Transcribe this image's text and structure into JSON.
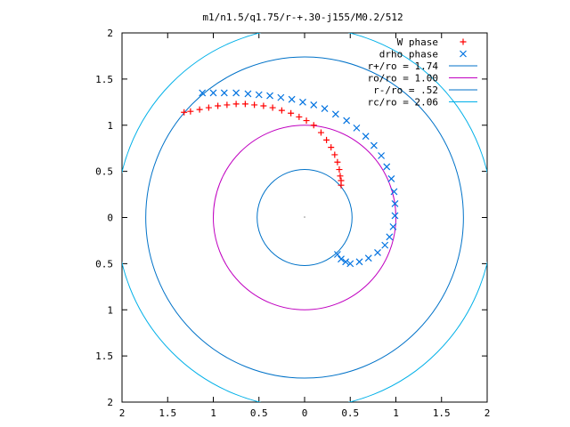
{
  "chart_data": {
    "type": "scatter",
    "title": "m1/n1.5/q1.75/r-+.30-j155/M0.2/512",
    "xlabel": "",
    "ylabel": "",
    "xlim": [
      -2,
      2
    ],
    "ylim": [
      -2,
      2
    ],
    "x_ticks": [
      -2,
      -1.5,
      -1,
      -0.5,
      0,
      0.5,
      1,
      1.5,
      2
    ],
    "y_ticks": [
      -2,
      -1.5,
      -1,
      -0.5,
      0,
      0.5,
      1,
      1.5,
      2
    ],
    "x_tick_labels": [
      "2",
      "1.5",
      "1",
      "0.5",
      "0",
      "0.5",
      "1",
      "1.5",
      "2"
    ],
    "y_tick_labels": [
      "2",
      "1.5",
      "1",
      "0.5",
      "0",
      "0.5",
      "1",
      "1.5",
      "2"
    ],
    "grid": false,
    "legend_position": "top-right",
    "series": [
      {
        "name": "W phase",
        "kind": "points",
        "marker": "plus",
        "color": "#ff0000",
        "points": [
          [
            0.4,
            0.35
          ],
          [
            0.4,
            0.4
          ],
          [
            0.39,
            0.45
          ],
          [
            0.38,
            0.52
          ],
          [
            0.36,
            0.6
          ],
          [
            0.33,
            0.68
          ],
          [
            0.29,
            0.76
          ],
          [
            0.24,
            0.84
          ],
          [
            0.18,
            0.92
          ],
          [
            0.1,
            1.0
          ],
          [
            0.02,
            1.05
          ],
          [
            -0.06,
            1.09
          ],
          [
            -0.15,
            1.13
          ],
          [
            -0.25,
            1.16
          ],
          [
            -0.35,
            1.19
          ],
          [
            -0.45,
            1.21
          ],
          [
            -0.55,
            1.22
          ],
          [
            -0.65,
            1.23
          ],
          [
            -0.75,
            1.23
          ],
          [
            -0.85,
            1.22
          ],
          [
            -0.95,
            1.21
          ],
          [
            -1.05,
            1.19
          ],
          [
            -1.15,
            1.17
          ],
          [
            -1.25,
            1.15
          ],
          [
            -1.32,
            1.14
          ]
        ]
      },
      {
        "name": "drho phase",
        "kind": "points",
        "marker": "cross",
        "color": "#0072e0",
        "points": [
          [
            -1.12,
            1.35
          ],
          [
            -1.0,
            1.35
          ],
          [
            -0.88,
            1.35
          ],
          [
            -0.75,
            1.35
          ],
          [
            -0.62,
            1.34
          ],
          [
            -0.5,
            1.33
          ],
          [
            -0.38,
            1.32
          ],
          [
            -0.26,
            1.3
          ],
          [
            -0.14,
            1.28
          ],
          [
            -0.02,
            1.25
          ],
          [
            0.1,
            1.22
          ],
          [
            0.22,
            1.18
          ],
          [
            0.34,
            1.12
          ],
          [
            0.46,
            1.05
          ],
          [
            0.57,
            0.97
          ],
          [
            0.67,
            0.88
          ],
          [
            0.76,
            0.78
          ],
          [
            0.84,
            0.67
          ],
          [
            0.9,
            0.55
          ],
          [
            0.95,
            0.42
          ],
          [
            0.98,
            0.28
          ],
          [
            0.99,
            0.15
          ],
          [
            0.99,
            0.02
          ],
          [
            0.97,
            -0.1
          ],
          [
            0.93,
            -0.21
          ],
          [
            0.88,
            -0.3
          ],
          [
            0.8,
            -0.38
          ],
          [
            0.7,
            -0.44
          ],
          [
            0.6,
            -0.48
          ],
          [
            0.5,
            -0.5
          ],
          [
            0.45,
            -0.48
          ],
          [
            0.4,
            -0.45
          ],
          [
            0.36,
            -0.4
          ]
        ]
      },
      {
        "name": "r+/ro = 1.74",
        "kind": "circle",
        "radius": 1.74,
        "color": "#0072c8"
      },
      {
        "name": "ro/ro = 1.00",
        "kind": "circle",
        "radius": 1.0,
        "color": "#c000c0"
      },
      {
        "name": "r-/ro = .52",
        "kind": "circle",
        "radius": 0.52,
        "color": "#0072c8"
      },
      {
        "name": "rc/ro = 2.06",
        "kind": "circle",
        "radius": 2.06,
        "color": "#00b0e8"
      }
    ]
  }
}
